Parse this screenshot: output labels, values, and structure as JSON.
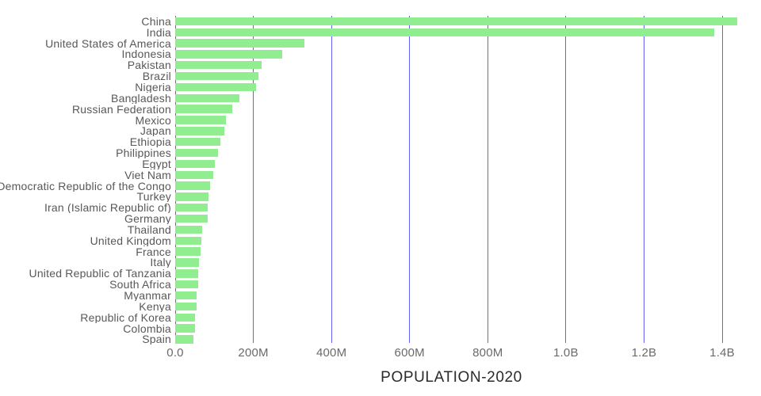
{
  "chart_data": {
    "type": "bar",
    "orientation": "horizontal",
    "title": "POPULATION-2020",
    "xlabel": "POPULATION-2020",
    "ylabel": "",
    "grid": true,
    "xlim_millions": [
      0,
      1500
    ],
    "x_ticks": [
      "0.0",
      "200M",
      "400M",
      "600M",
      "800M",
      "1.0B",
      "1.2B",
      "1.4B"
    ],
    "x_tick_values_millions": [
      0,
      200,
      400,
      600,
      800,
      1000,
      1200,
      1400
    ],
    "bar_color": "#90ee90",
    "gridline_color": "#4545fa",
    "categories": [
      "China",
      "India",
      "United States of America",
      "Indonesia",
      "Pakistan",
      "Brazil",
      "Nigeria",
      "Bangladesh",
      "Russian Federation",
      "Mexico",
      "Japan",
      "Ethiopia",
      "Philippines",
      "Egypt",
      "Viet Nam",
      "Democratic Republic of the Congo",
      "Turkey",
      "Iran (Islamic Republic of)",
      "Germany",
      "Thailand",
      "United Kingdom",
      "France",
      "Italy",
      "United Republic of Tanzania",
      "South Africa",
      "Myanmar",
      "Kenya",
      "Republic of Korea",
      "Colombia",
      "Spain"
    ],
    "values_millions": [
      1439.32,
      1380.0,
      331.0,
      273.52,
      220.89,
      212.56,
      206.14,
      164.69,
      145.93,
      128.93,
      126.48,
      114.96,
      109.58,
      102.33,
      97.34,
      89.56,
      84.34,
      83.99,
      83.78,
      69.8,
      67.89,
      65.27,
      60.46,
      59.73,
      59.31,
      54.41,
      53.77,
      51.27,
      50.88,
      46.75
    ]
  }
}
